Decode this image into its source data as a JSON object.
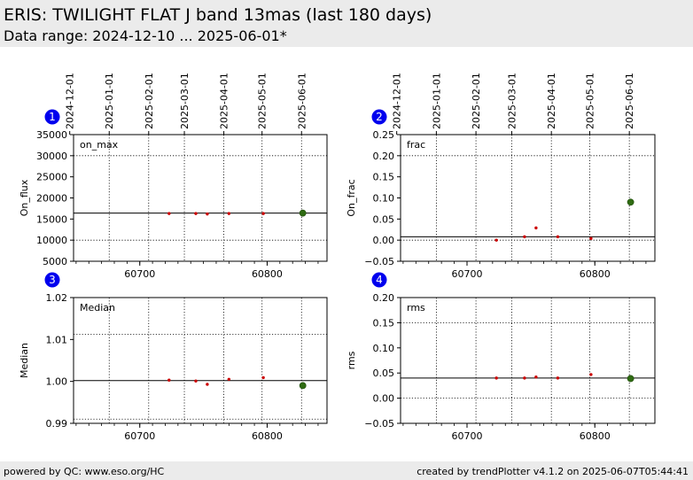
{
  "header": {
    "title": "ERIS: TWILIGHT FLAT J band 13mas (last 180 days)",
    "subtitle": "Data range: 2024-12-10 ... 2025-06-01*"
  },
  "footer": {
    "left": "powered by QC: www.eso.org/HC",
    "right": "created by trendPlotter v4.1.2 on 2025-06-07T05:44:41"
  },
  "colors": {
    "points": "#cc0000",
    "latest": "#2f6b12",
    "badge": "#0000ee"
  },
  "chart_data": [
    {
      "type": "scatter",
      "panel": "1",
      "tag": "on_max",
      "ylabel": "On_flux",
      "ylim": [
        5000,
        35000
      ],
      "yticks": [
        5000,
        10000,
        15000,
        20000,
        25000,
        30000,
        35000
      ],
      "ytick_labels": [
        "5000",
        "10000",
        "15000",
        "20000",
        "25000",
        "30000",
        "35000"
      ],
      "ydotted": [
        10000,
        30000
      ],
      "reference": 16400,
      "x": [
        60723,
        60744,
        60753,
        60770,
        60797
      ],
      "y": [
        16300,
        16300,
        16200,
        16300,
        16300
      ],
      "latest": {
        "x": 60828,
        "y": 16400
      }
    },
    {
      "type": "scatter",
      "panel": "2",
      "tag": "frac",
      "ylabel": "On_frac",
      "ylim": [
        -0.05,
        0.25
      ],
      "yticks": [
        -0.05,
        0.0,
        0.05,
        0.1,
        0.15,
        0.2,
        0.25
      ],
      "ytick_labels": [
        "−0.05",
        "0.00",
        "0.05",
        "0.10",
        "0.15",
        "0.20",
        "0.25"
      ],
      "ydotted": [
        0.0,
        0.2
      ],
      "reference": 0.008,
      "x": [
        60723,
        60745,
        60754,
        60771,
        60797
      ],
      "y": [
        0.0,
        0.008,
        0.029,
        0.008,
        0.004
      ],
      "latest": {
        "x": 60828,
        "y": 0.09
      }
    },
    {
      "type": "scatter",
      "panel": "3",
      "tag": "Median",
      "ylabel": "Median",
      "ylim": [
        0.99,
        1.02
      ],
      "yticks": [
        0.99,
        1.0,
        1.01,
        1.02
      ],
      "ytick_labels": [
        "0.99",
        "1.00",
        "1.01",
        "1.02"
      ],
      "ydotted": [
        0.991,
        1.0112
      ],
      "reference": 1.0002,
      "x": [
        60723,
        60744,
        60753,
        60770,
        60797
      ],
      "y": [
        1.0003,
        1.0001,
        0.9993,
        1.0005,
        1.0009
      ],
      "latest": {
        "x": 60828,
        "y": 0.999
      }
    },
    {
      "type": "scatter",
      "panel": "4",
      "tag": "rms",
      "ylabel": "rms",
      "ylim": [
        -0.05,
        0.2
      ],
      "yticks": [
        -0.05,
        0.0,
        0.05,
        0.1,
        0.15,
        0.2
      ],
      "ytick_labels": [
        "−0.05",
        "0.00",
        "0.05",
        "0.10",
        "0.15",
        "0.20"
      ],
      "ydotted": [
        0.0,
        0.15
      ],
      "reference": 0.04,
      "x": [
        60723,
        60745,
        60754,
        60771,
        60797
      ],
      "y": [
        0.04,
        0.04,
        0.042,
        0.04,
        0.047
      ],
      "latest": {
        "x": 60828,
        "y": 0.039
      }
    }
  ],
  "axes": {
    "xlim": [
      60648,
      60847
    ],
    "xticks": [
      60700,
      60800
    ],
    "xtick_labels": [
      "60700",
      "60800"
    ],
    "date_ticks": [
      "2024-12-01",
      "2025-01-01",
      "2025-02-01",
      "2025-03-01",
      "2025-04-01",
      "2025-05-01",
      "2025-06-01"
    ],
    "date_mjd": [
      60645,
      60676,
      60707,
      60735,
      60766,
      60796,
      60827
    ]
  }
}
